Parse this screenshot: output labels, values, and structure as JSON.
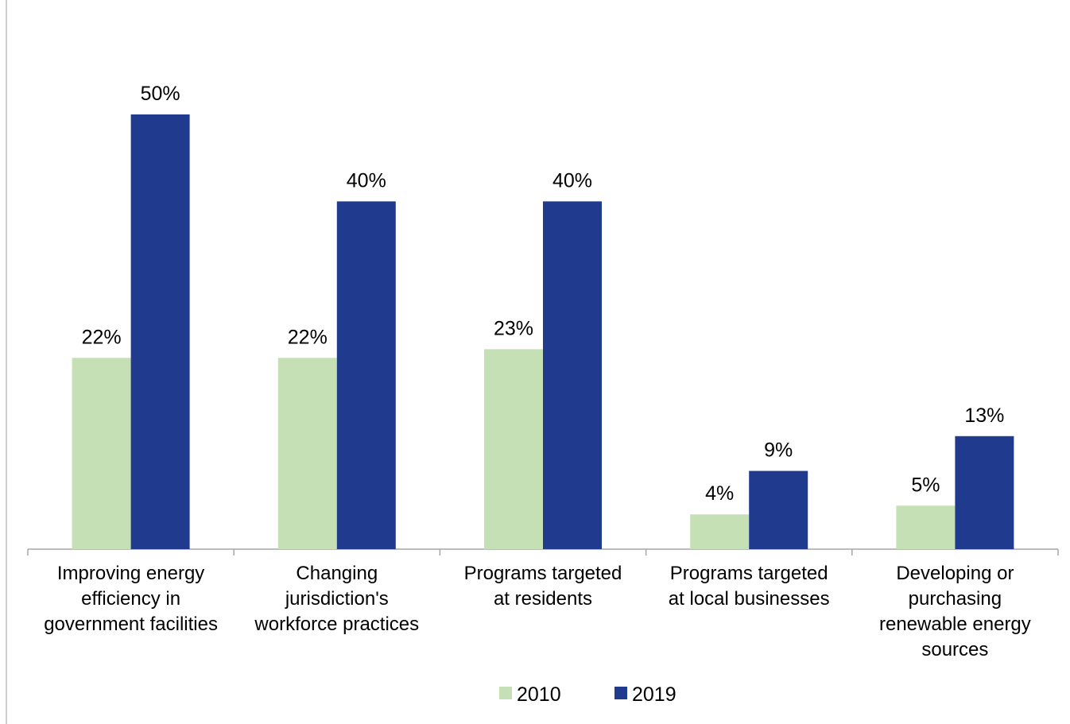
{
  "chart_data": {
    "type": "bar",
    "categories": [
      "Improving energy\nefficiency in\ngovernment facilities",
      "Changing\njurisdiction's\nworkforce practices",
      "Programs targeted\nat residents",
      "Programs targeted\nat local businesses",
      "Developing or\npurchasing\nrenewable energy\nsources"
    ],
    "series": [
      {
        "name": "2010",
        "color": "#c5e0b4",
        "values": [
          22,
          22,
          23,
          4,
          5
        ],
        "value_labels": [
          "22%",
          "22%",
          "23%",
          "4%",
          "5%"
        ]
      },
      {
        "name": "2019",
        "color": "#203a8e",
        "values": [
          50,
          40,
          40,
          9,
          13
        ],
        "value_labels": [
          "50%",
          "40%",
          "40%",
          "9%",
          "13%"
        ]
      }
    ],
    "legend": "bottom"
  }
}
